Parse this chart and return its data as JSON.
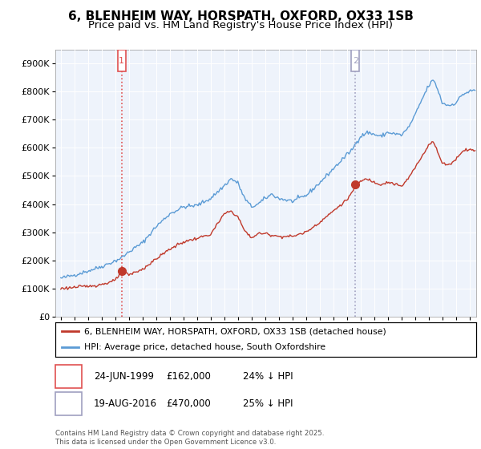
{
  "title": "6, BLENHEIM WAY, HORSPATH, OXFORD, OX33 1SB",
  "subtitle": "Price paid vs. HM Land Registry's House Price Index (HPI)",
  "ylim": [
    0,
    950000
  ],
  "yticks": [
    0,
    100000,
    200000,
    300000,
    400000,
    500000,
    600000,
    700000,
    800000,
    900000
  ],
  "ytick_labels": [
    "£0",
    "£100K",
    "£200K",
    "£300K",
    "£400K",
    "£500K",
    "£600K",
    "£700K",
    "£800K",
    "£900K"
  ],
  "hpi_color": "#5b9bd5",
  "sale_color": "#c0392b",
  "vline1_color": "#e05050",
  "vline2_color": "#a0a0c0",
  "chart_bg": "#eef3fb",
  "marker1_x": 1999.47,
  "marker1_y": 162000,
  "marker2_x": 2016.63,
  "marker2_y": 470000,
  "legend_sale": "6, BLENHEIM WAY, HORSPATH, OXFORD, OX33 1SB (detached house)",
  "legend_hpi": "HPI: Average price, detached house, South Oxfordshire",
  "footnote": "Contains HM Land Registry data © Crown copyright and database right 2025.\nThis data is licensed under the Open Government Licence v3.0.",
  "xlim_start": 1994.6,
  "xlim_end": 2025.5,
  "title_fontsize": 11,
  "subtitle_fontsize": 9.5,
  "tick_fontsize": 8
}
